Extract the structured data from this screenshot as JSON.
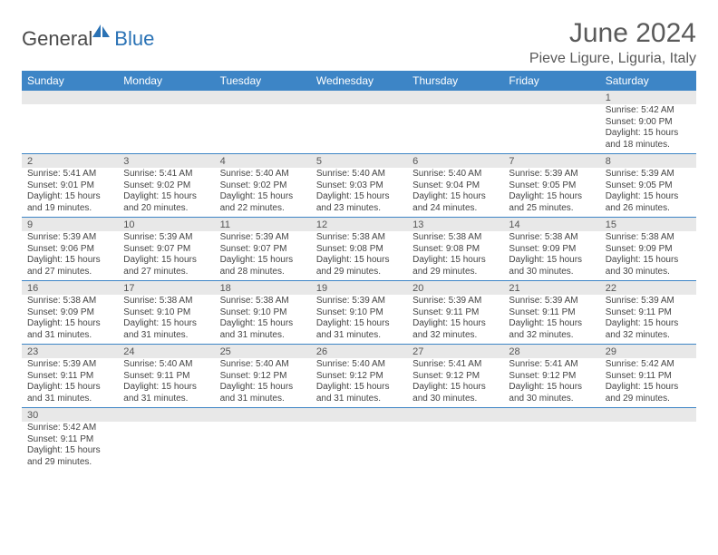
{
  "logo": {
    "general": "General",
    "blue": "Blue"
  },
  "title": "June 2024",
  "location": "Pieve Ligure, Liguria, Italy",
  "colors": {
    "header_bg": "#3d85c6",
    "header_text": "#ffffff",
    "daynum_bg": "#e8e8e8",
    "border": "#3d85c6",
    "text": "#444444",
    "title_text": "#5a5a5a"
  },
  "day_headers": [
    "Sunday",
    "Monday",
    "Tuesday",
    "Wednesday",
    "Thursday",
    "Friday",
    "Saturday"
  ],
  "weeks": [
    [
      null,
      null,
      null,
      null,
      null,
      null,
      {
        "n": "1",
        "sunrise": "5:42 AM",
        "sunset": "9:00 PM",
        "daylight": "15 hours and 18 minutes."
      }
    ],
    [
      {
        "n": "2",
        "sunrise": "5:41 AM",
        "sunset": "9:01 PM",
        "daylight": "15 hours and 19 minutes."
      },
      {
        "n": "3",
        "sunrise": "5:41 AM",
        "sunset": "9:02 PM",
        "daylight": "15 hours and 20 minutes."
      },
      {
        "n": "4",
        "sunrise": "5:40 AM",
        "sunset": "9:02 PM",
        "daylight": "15 hours and 22 minutes."
      },
      {
        "n": "5",
        "sunrise": "5:40 AM",
        "sunset": "9:03 PM",
        "daylight": "15 hours and 23 minutes."
      },
      {
        "n": "6",
        "sunrise": "5:40 AM",
        "sunset": "9:04 PM",
        "daylight": "15 hours and 24 minutes."
      },
      {
        "n": "7",
        "sunrise": "5:39 AM",
        "sunset": "9:05 PM",
        "daylight": "15 hours and 25 minutes."
      },
      {
        "n": "8",
        "sunrise": "5:39 AM",
        "sunset": "9:05 PM",
        "daylight": "15 hours and 26 minutes."
      }
    ],
    [
      {
        "n": "9",
        "sunrise": "5:39 AM",
        "sunset": "9:06 PM",
        "daylight": "15 hours and 27 minutes."
      },
      {
        "n": "10",
        "sunrise": "5:39 AM",
        "sunset": "9:07 PM",
        "daylight": "15 hours and 27 minutes."
      },
      {
        "n": "11",
        "sunrise": "5:39 AM",
        "sunset": "9:07 PM",
        "daylight": "15 hours and 28 minutes."
      },
      {
        "n": "12",
        "sunrise": "5:38 AM",
        "sunset": "9:08 PM",
        "daylight": "15 hours and 29 minutes."
      },
      {
        "n": "13",
        "sunrise": "5:38 AM",
        "sunset": "9:08 PM",
        "daylight": "15 hours and 29 minutes."
      },
      {
        "n": "14",
        "sunrise": "5:38 AM",
        "sunset": "9:09 PM",
        "daylight": "15 hours and 30 minutes."
      },
      {
        "n": "15",
        "sunrise": "5:38 AM",
        "sunset": "9:09 PM",
        "daylight": "15 hours and 30 minutes."
      }
    ],
    [
      {
        "n": "16",
        "sunrise": "5:38 AM",
        "sunset": "9:09 PM",
        "daylight": "15 hours and 31 minutes."
      },
      {
        "n": "17",
        "sunrise": "5:38 AM",
        "sunset": "9:10 PM",
        "daylight": "15 hours and 31 minutes."
      },
      {
        "n": "18",
        "sunrise": "5:38 AM",
        "sunset": "9:10 PM",
        "daylight": "15 hours and 31 minutes."
      },
      {
        "n": "19",
        "sunrise": "5:39 AM",
        "sunset": "9:10 PM",
        "daylight": "15 hours and 31 minutes."
      },
      {
        "n": "20",
        "sunrise": "5:39 AM",
        "sunset": "9:11 PM",
        "daylight": "15 hours and 32 minutes."
      },
      {
        "n": "21",
        "sunrise": "5:39 AM",
        "sunset": "9:11 PM",
        "daylight": "15 hours and 32 minutes."
      },
      {
        "n": "22",
        "sunrise": "5:39 AM",
        "sunset": "9:11 PM",
        "daylight": "15 hours and 32 minutes."
      }
    ],
    [
      {
        "n": "23",
        "sunrise": "5:39 AM",
        "sunset": "9:11 PM",
        "daylight": "15 hours and 31 minutes."
      },
      {
        "n": "24",
        "sunrise": "5:40 AM",
        "sunset": "9:11 PM",
        "daylight": "15 hours and 31 minutes."
      },
      {
        "n": "25",
        "sunrise": "5:40 AM",
        "sunset": "9:12 PM",
        "daylight": "15 hours and 31 minutes."
      },
      {
        "n": "26",
        "sunrise": "5:40 AM",
        "sunset": "9:12 PM",
        "daylight": "15 hours and 31 minutes."
      },
      {
        "n": "27",
        "sunrise": "5:41 AM",
        "sunset": "9:12 PM",
        "daylight": "15 hours and 30 minutes."
      },
      {
        "n": "28",
        "sunrise": "5:41 AM",
        "sunset": "9:12 PM",
        "daylight": "15 hours and 30 minutes."
      },
      {
        "n": "29",
        "sunrise": "5:42 AM",
        "sunset": "9:11 PM",
        "daylight": "15 hours and 29 minutes."
      }
    ],
    [
      {
        "n": "30",
        "sunrise": "5:42 AM",
        "sunset": "9:11 PM",
        "daylight": "15 hours and 29 minutes."
      },
      null,
      null,
      null,
      null,
      null,
      null
    ]
  ],
  "labels": {
    "sunrise": "Sunrise:",
    "sunset": "Sunset:",
    "daylight": "Daylight:"
  }
}
